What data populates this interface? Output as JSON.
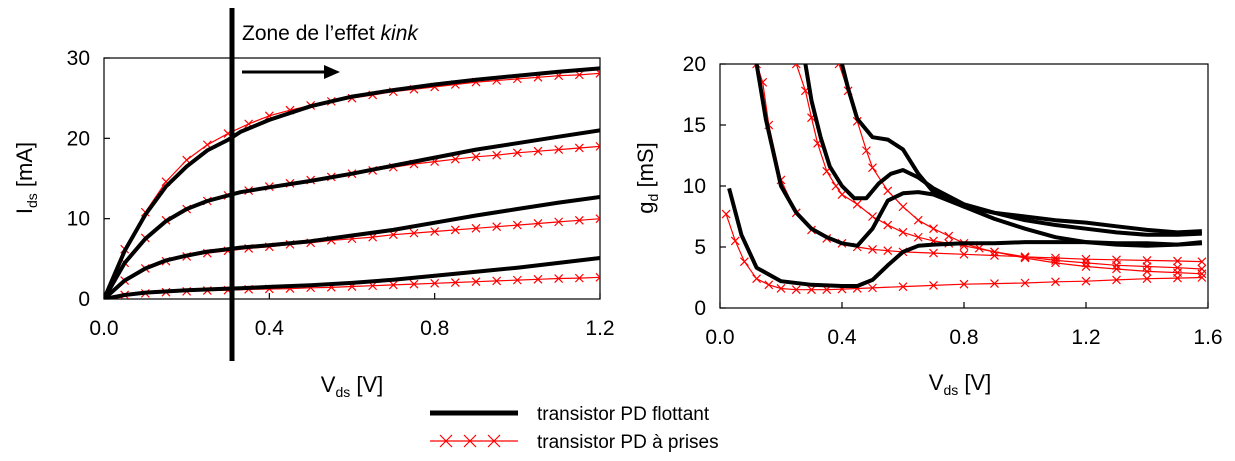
{
  "legend": [
    {
      "label": "transistor PD flottant",
      "color": "#000000",
      "style": "thick-solid"
    },
    {
      "label": "transistor PD à prises",
      "color": "#ff0000",
      "style": "thin-cross"
    }
  ],
  "chart_data": [
    {
      "type": "line",
      "xlabel_main": "V",
      "xlabel_sub": "ds",
      "xlabel_unit": " [V]",
      "ylabel_main": "I",
      "ylabel_sub": "ds",
      "ylabel_unit": " [mA]",
      "xlim": [
        0,
        1.2
      ],
      "ylim": [
        0,
        30
      ],
      "xticks": [
        0.0,
        0.4,
        0.8,
        1.2
      ],
      "xtick_labels": [
        "0.0",
        "0.4",
        "0.8",
        "1.2"
      ],
      "yticks": [
        0,
        10,
        20,
        30
      ],
      "ytick_labels": [
        "0",
        "10",
        "20",
        "30"
      ],
      "annotation": {
        "text": "Zone de l’effet ",
        "text_italic": "kink",
        "kink_x": 0.33,
        "arrow": "right"
      },
      "series": [
        {
          "group": "flottant",
          "x": [
            0,
            0.05,
            0.1,
            0.15,
            0.2,
            0.25,
            0.3,
            0.33,
            0.4,
            0.5,
            0.6,
            0.7,
            0.8,
            0.9,
            1.0,
            1.1,
            1.2
          ],
          "y": [
            0,
            6,
            10.5,
            14,
            16.5,
            18.5,
            19.8,
            20.8,
            22.3,
            24,
            25.2,
            26,
            26.7,
            27.3,
            27.8,
            28.3,
            28.7
          ]
        },
        {
          "group": "flottant",
          "x": [
            0,
            0.05,
            0.1,
            0.15,
            0.2,
            0.25,
            0.3,
            0.33,
            0.4,
            0.5,
            0.6,
            0.7,
            0.8,
            0.9,
            1.0,
            1.1,
            1.2
          ],
          "y": [
            0,
            4.5,
            7.5,
            9.7,
            11.2,
            12.2,
            12.9,
            13.3,
            13.9,
            14.7,
            15.6,
            16.6,
            17.6,
            18.6,
            19.4,
            20.2,
            21
          ]
        },
        {
          "group": "flottant",
          "x": [
            0,
            0.05,
            0.1,
            0.15,
            0.2,
            0.25,
            0.3,
            0.33,
            0.4,
            0.5,
            0.6,
            0.7,
            0.8,
            0.9,
            1.0,
            1.1,
            1.2
          ],
          "y": [
            0,
            2.3,
            3.8,
            4.8,
            5.4,
            5.9,
            6.2,
            6.4,
            6.7,
            7.2,
            7.9,
            8.6,
            9.5,
            10.4,
            11.2,
            12,
            12.7
          ]
        },
        {
          "group": "flottant",
          "x": [
            0,
            0.05,
            0.1,
            0.2,
            0.3,
            0.33,
            0.4,
            0.5,
            0.6,
            0.7,
            0.8,
            0.9,
            1.0,
            1.1,
            1.2
          ],
          "y": [
            0,
            0.5,
            0.8,
            1.1,
            1.3,
            1.35,
            1.5,
            1.7,
            2.0,
            2.4,
            2.9,
            3.4,
            3.9,
            4.5,
            5.1
          ]
        },
        {
          "group": "prises",
          "x": [
            0,
            0.05,
            0.1,
            0.15,
            0.2,
            0.25,
            0.3,
            0.35,
            0.4,
            0.45,
            0.5,
            0.55,
            0.6,
            0.65,
            0.7,
            0.75,
            0.8,
            0.85,
            0.9,
            0.95,
            1.0,
            1.05,
            1.1,
            1.15,
            1.2
          ],
          "y": [
            0,
            6.2,
            10.8,
            14.6,
            17.3,
            19.2,
            20.6,
            21.8,
            22.8,
            23.5,
            24.1,
            24.6,
            25,
            25.4,
            25.8,
            26.1,
            26.4,
            26.7,
            27,
            27.2,
            27.4,
            27.6,
            27.8,
            27.9,
            28.1
          ]
        },
        {
          "group": "prises",
          "x": [
            0,
            0.05,
            0.1,
            0.15,
            0.2,
            0.25,
            0.3,
            0.35,
            0.4,
            0.45,
            0.5,
            0.55,
            0.6,
            0.65,
            0.7,
            0.75,
            0.8,
            0.85,
            0.9,
            0.95,
            1.0,
            1.05,
            1.1,
            1.15,
            1.2
          ],
          "y": [
            0,
            4.5,
            7.6,
            9.8,
            11.2,
            12.2,
            12.9,
            13.5,
            14,
            14.4,
            14.8,
            15.2,
            15.6,
            16,
            16.4,
            16.8,
            17.1,
            17.4,
            17.7,
            17.9,
            18.2,
            18.4,
            18.6,
            18.8,
            19
          ]
        },
        {
          "group": "prises",
          "x": [
            0,
            0.05,
            0.1,
            0.15,
            0.2,
            0.25,
            0.3,
            0.35,
            0.4,
            0.45,
            0.5,
            0.55,
            0.6,
            0.65,
            0.7,
            0.75,
            0.8,
            0.85,
            0.9,
            0.95,
            1.0,
            1.05,
            1.1,
            1.15,
            1.2
          ],
          "y": [
            0,
            2.3,
            3.8,
            4.7,
            5.3,
            5.7,
            6.0,
            6.3,
            6.5,
            6.8,
            7.0,
            7.3,
            7.5,
            7.7,
            8.0,
            8.2,
            8.4,
            8.6,
            8.8,
            9.0,
            9.2,
            9.4,
            9.6,
            9.8,
            10.0
          ]
        },
        {
          "group": "prises",
          "x": [
            0,
            0.05,
            0.1,
            0.15,
            0.2,
            0.25,
            0.3,
            0.35,
            0.4,
            0.45,
            0.5,
            0.55,
            0.6,
            0.65,
            0.7,
            0.75,
            0.8,
            0.85,
            0.9,
            0.95,
            1.0,
            1.05,
            1.1,
            1.15,
            1.2
          ],
          "y": [
            0,
            0.5,
            0.7,
            0.85,
            0.95,
            1.05,
            1.1,
            1.2,
            1.25,
            1.3,
            1.4,
            1.45,
            1.55,
            1.65,
            1.75,
            1.85,
            1.95,
            2.05,
            2.15,
            2.25,
            2.35,
            2.45,
            2.55,
            2.6,
            2.7
          ]
        }
      ]
    },
    {
      "type": "line",
      "xlabel_main": "V",
      "xlabel_sub": "ds",
      "xlabel_unit": " [V]",
      "ylabel_main": "g",
      "ylabel_sub": "d",
      "ylabel_unit": " [mS]",
      "xlim": [
        0,
        1.6
      ],
      "ylim": [
        0,
        20
      ],
      "xticks": [
        0.0,
        0.4,
        0.8,
        1.2,
        1.6
      ],
      "xtick_labels": [
        "0.0",
        "0.4",
        "0.8",
        "1.2",
        "1.6"
      ],
      "yticks": [
        0,
        5,
        10,
        15,
        20
      ],
      "ytick_labels": [
        "0",
        "5",
        "10",
        "15",
        "20"
      ],
      "series": [
        {
          "group": "flottant",
          "x": [
            0.03,
            0.07,
            0.12,
            0.2,
            0.3,
            0.4,
            0.45,
            0.5,
            0.55,
            0.6,
            0.65,
            0.7,
            0.8,
            0.9,
            1.0,
            1.1,
            1.2,
            1.3,
            1.4,
            1.5,
            1.58
          ],
          "y": [
            9.8,
            6,
            3.3,
            2.2,
            1.9,
            1.8,
            1.8,
            2.3,
            3.5,
            4.6,
            5.1,
            5.2,
            5.3,
            5.3,
            5.4,
            5.4,
            5.4,
            5.3,
            5.3,
            5.2,
            5.3
          ]
        },
        {
          "group": "flottant",
          "x": [
            0.12,
            0.15,
            0.2,
            0.25,
            0.3,
            0.35,
            0.4,
            0.45,
            0.5,
            0.55,
            0.6,
            0.65,
            0.7,
            0.8,
            0.9,
            1.0,
            1.1,
            1.2,
            1.3,
            1.4,
            1.5,
            1.58
          ],
          "y": [
            20,
            15.5,
            10,
            7.8,
            6.5,
            5.8,
            5.3,
            5.1,
            6.5,
            8.8,
            9.4,
            9.5,
            9.3,
            8.3,
            7.3,
            6.5,
            5.8,
            5.4,
            5.2,
            5.1,
            5.2,
            5.4
          ]
        },
        {
          "group": "flottant",
          "x": [
            0.28,
            0.3,
            0.33,
            0.36,
            0.4,
            0.44,
            0.48,
            0.52,
            0.56,
            0.6,
            0.65,
            0.7,
            0.8,
            0.9,
            1.0,
            1.1,
            1.2,
            1.3,
            1.4,
            1.5,
            1.58
          ],
          "y": [
            20,
            17,
            14,
            11.6,
            10,
            9,
            9,
            10.2,
            11,
            11.3,
            10.7,
            9.8,
            8.5,
            7.8,
            7.2,
            6.8,
            6.5,
            6.2,
            6.0,
            6.0,
            6.1
          ]
        },
        {
          "group": "flottant",
          "x": [
            0.4,
            0.42,
            0.45,
            0.5,
            0.55,
            0.6,
            0.65,
            0.7,
            0.8,
            0.9,
            1.0,
            1.1,
            1.2,
            1.3,
            1.4,
            1.5,
            1.58
          ],
          "y": [
            20,
            18,
            15.5,
            14,
            13.8,
            13,
            11,
            9.5,
            8.3,
            7.8,
            7.5,
            7.2,
            7.0,
            6.7,
            6.4,
            6.2,
            6.3
          ]
        },
        {
          "group": "prises",
          "x": [
            0.02,
            0.05,
            0.08,
            0.12,
            0.16,
            0.2,
            0.25,
            0.3,
            0.35,
            0.4,
            0.45,
            0.5,
            0.6,
            0.7,
            0.8,
            0.9,
            1.0,
            1.1,
            1.2,
            1.3,
            1.4,
            1.5,
            1.58
          ],
          "y": [
            7.7,
            5.5,
            3.8,
            2.4,
            1.9,
            1.6,
            1.5,
            1.5,
            1.5,
            1.55,
            1.6,
            1.65,
            1.75,
            1.85,
            1.95,
            2.0,
            2.05,
            2.15,
            2.2,
            2.3,
            2.4,
            2.45,
            2.5
          ]
        },
        {
          "group": "prises",
          "x": [
            0.12,
            0.14,
            0.16,
            0.2,
            0.25,
            0.3,
            0.35,
            0.4,
            0.45,
            0.5,
            0.55,
            0.6,
            0.7,
            0.8,
            0.9,
            1.0,
            1.1,
            1.2,
            1.3,
            1.4,
            1.5,
            1.58
          ],
          "y": [
            20,
            18.5,
            15,
            10.5,
            7.8,
            6.4,
            5.7,
            5.3,
            5.0,
            4.8,
            4.7,
            4.6,
            4.5,
            4.4,
            4.3,
            4.2,
            4.1,
            4.0,
            3.95,
            3.9,
            3.85,
            3.8
          ]
        },
        {
          "group": "prises",
          "x": [
            0.25,
            0.28,
            0.3,
            0.32,
            0.35,
            0.38,
            0.4,
            0.45,
            0.5,
            0.55,
            0.6,
            0.65,
            0.7,
            0.75,
            0.8,
            0.9,
            1.0,
            1.1,
            1.2,
            1.3,
            1.4,
            1.5,
            1.58
          ],
          "y": [
            20,
            17.8,
            15.6,
            13.5,
            11.2,
            10,
            9.3,
            8.5,
            7.5,
            6.8,
            6.2,
            5.8,
            5.5,
            5.3,
            5.1,
            4.6,
            4.2,
            3.9,
            3.7,
            3.5,
            3.4,
            3.3,
            3.2
          ]
        },
        {
          "group": "prises",
          "x": [
            0.39,
            0.42,
            0.45,
            0.48,
            0.5,
            0.55,
            0.6,
            0.65,
            0.7,
            0.75,
            0.8,
            0.85,
            0.9,
            1.0,
            1.1,
            1.2,
            1.3,
            1.4,
            1.5,
            1.58
          ],
          "y": [
            20,
            17.8,
            15.3,
            12.9,
            11.5,
            9.6,
            8.3,
            7.2,
            6.5,
            5.9,
            5.3,
            4.9,
            4.6,
            4.1,
            3.7,
            3.4,
            3.2,
            3.0,
            2.9,
            2.8
          ]
        }
      ]
    }
  ]
}
